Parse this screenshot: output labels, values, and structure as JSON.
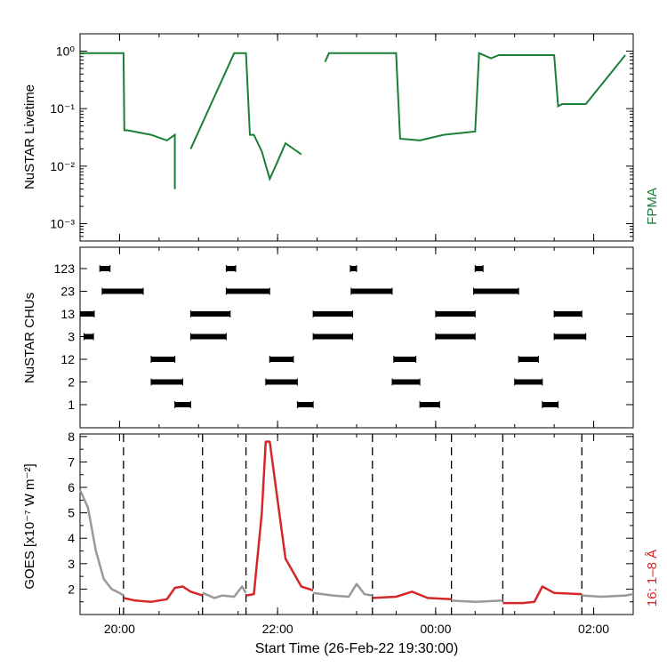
{
  "figure": {
    "xlabel": "Start Time (26-Feb-22 19:30:00)",
    "x_tick_labels": [
      "20:00",
      "22:00",
      "00:00",
      "02:00"
    ],
    "x_tick_hours": [
      0.5,
      2.5,
      4.5,
      6.5
    ],
    "x_range_hours": [
      0,
      7.0
    ]
  },
  "colors": {
    "livetime": "#1a7f37",
    "goes_active": "#d62728",
    "goes_inactive": "#999999",
    "chu_marks": "#000000",
    "axes": "#000000"
  },
  "chart_data": [
    {
      "type": "line",
      "title": "",
      "ylabel": "NuSTAR Livetime",
      "yscale": "log",
      "ylim": [
        0.0005,
        2
      ],
      "y_tick_labels": [
        "10⁰",
        "10⁻¹",
        "10⁻²",
        "10⁻³"
      ],
      "y_tick_values": [
        1,
        0.1,
        0.01,
        0.001
      ],
      "legend": "FPMA",
      "series": [
        {
          "name": "FPMA",
          "x": [
            0.0,
            0.55,
            0.56,
            0.6,
            0.9,
            1.1,
            1.2,
            1.2,
            1.4,
            1.4,
            1.95,
            1.96,
            2.1,
            2.15,
            2.2,
            2.3,
            2.4,
            2.5,
            2.6,
            2.8
          ],
          "y": [
            0.92,
            0.92,
            0.042,
            0.042,
            0.035,
            0.028,
            0.035,
            0.004,
            null,
            0.02,
            0.92,
            0.92,
            0.92,
            0.035,
            0.035,
            0.018,
            0.006,
            0.012,
            0.025,
            0.016
          ]
        },
        {
          "name": "FPMA",
          "x": [
            3.1,
            3.15,
            3.2,
            4.0,
            4.05,
            4.3,
            4.6,
            5.0,
            5.05,
            5.2,
            5.3,
            5.6,
            6.0,
            6.05,
            6.1,
            6.4,
            6.9
          ],
          "y": [
            0.65,
            0.92,
            0.92,
            0.92,
            0.03,
            0.028,
            0.035,
            0.04,
            0.92,
            0.75,
            0.85,
            0.85,
            0.85,
            0.11,
            0.12,
            0.12,
            0.85
          ]
        }
      ]
    },
    {
      "type": "scatter",
      "title": "",
      "ylabel": "NuSTAR CHUs",
      "categories": [
        "123",
        "23",
        "13",
        "3",
        "12",
        "2",
        "1"
      ],
      "intervals": [
        {
          "category": "123",
          "x": [
            [
              0.25,
              0.38
            ],
            [
              1.85,
              1.97
            ],
            [
              3.42,
              3.5
            ],
            [
              5.0,
              5.1
            ]
          ]
        },
        {
          "category": "23",
          "x": [
            [
              0.28,
              0.8
            ],
            [
              1.85,
              2.4
            ],
            [
              3.43,
              3.95
            ],
            [
              4.98,
              5.55
            ]
          ]
        },
        {
          "category": "13",
          "x": [
            [
              0.0,
              0.18
            ],
            [
              1.4,
              1.9
            ],
            [
              2.95,
              3.45
            ],
            [
              4.5,
              5.0
            ],
            [
              6.0,
              6.35
            ]
          ]
        },
        {
          "category": "3",
          "x": [
            [
              0.05,
              0.17
            ],
            [
              1.4,
              1.85
            ],
            [
              2.95,
              3.45
            ],
            [
              4.5,
              5.0
            ],
            [
              6.0,
              6.4
            ]
          ]
        },
        {
          "category": "12",
          "x": [
            [
              0.9,
              1.2
            ],
            [
              2.4,
              2.7
            ],
            [
              3.97,
              4.25
            ],
            [
              5.55,
              5.8
            ]
          ]
        },
        {
          "category": "2",
          "x": [
            [
              0.9,
              1.3
            ],
            [
              2.35,
              2.75
            ],
            [
              3.95,
              4.3
            ],
            [
              5.5,
              5.85
            ]
          ]
        },
        {
          "category": "1",
          "x": [
            [
              1.2,
              1.4
            ],
            [
              2.75,
              2.95
            ],
            [
              4.3,
              4.55
            ],
            [
              5.85,
              6.05
            ]
          ]
        }
      ]
    },
    {
      "type": "line",
      "title": "",
      "ylabel": "GOES [x10⁻⁷ W m⁻²]",
      "ylim": [
        1.0,
        8.1
      ],
      "y_tick_labels": [
        "8",
        "7",
        "6",
        "5",
        "4",
        "3",
        "2"
      ],
      "y_tick_values": [
        8,
        7,
        6,
        5,
        4,
        3,
        2
      ],
      "legend": "16: 1–8 Å",
      "vlines_hours": [
        0.55,
        1.55,
        2.1,
        2.95,
        3.7,
        4.7,
        5.35,
        6.35
      ],
      "series": [
        {
          "name": "16: 1–8 Å",
          "segments": [
            {
              "color": "goes_inactive",
              "x": [
                0.0,
                0.1,
                0.2,
                0.3,
                0.4,
                0.5,
                0.55
              ],
              "y": [
                5.9,
                5.2,
                3.5,
                2.4,
                2.0,
                1.85,
                1.75
              ]
            },
            {
              "color": "goes_active",
              "x": [
                0.55,
                0.7,
                0.9,
                1.1,
                1.2,
                1.3,
                1.4,
                1.55
              ],
              "y": [
                1.65,
                1.55,
                1.5,
                1.6,
                2.05,
                2.1,
                1.9,
                1.75
              ]
            },
            {
              "color": "goes_inactive",
              "x": [
                1.55,
                1.7,
                1.8,
                1.95,
                2.05,
                2.1
              ],
              "y": [
                1.85,
                1.65,
                1.75,
                1.7,
                2.1,
                1.85
              ]
            },
            {
              "color": "goes_active",
              "x": [
                2.1,
                2.2,
                2.3,
                2.35,
                2.4,
                2.5,
                2.6,
                2.8,
                2.95
              ],
              "y": [
                1.75,
                1.8,
                5.0,
                7.8,
                7.8,
                5.5,
                3.2,
                2.1,
                1.95
              ]
            },
            {
              "color": "goes_inactive",
              "x": [
                2.95,
                3.2,
                3.4,
                3.5,
                3.6,
                3.7
              ],
              "y": [
                1.85,
                1.75,
                1.7,
                2.2,
                1.8,
                1.75
              ]
            },
            {
              "color": "goes_active",
              "x": [
                3.7,
                4.0,
                4.2,
                4.4,
                4.7
              ],
              "y": [
                1.65,
                1.7,
                1.9,
                1.65,
                1.6
              ]
            },
            {
              "color": "goes_inactive",
              "x": [
                4.7,
                5.0,
                5.35
              ],
              "y": [
                1.55,
                1.5,
                1.55
              ]
            },
            {
              "color": "goes_active",
              "x": [
                5.35,
                5.6,
                5.75,
                5.85,
                6.0,
                6.35
              ],
              "y": [
                1.45,
                1.45,
                1.5,
                2.1,
                1.85,
                1.8
              ]
            },
            {
              "color": "goes_inactive",
              "x": [
                6.35,
                6.6,
                6.9,
                7.0
              ],
              "y": [
                1.75,
                1.7,
                1.75,
                1.8
              ]
            }
          ]
        }
      ]
    }
  ]
}
